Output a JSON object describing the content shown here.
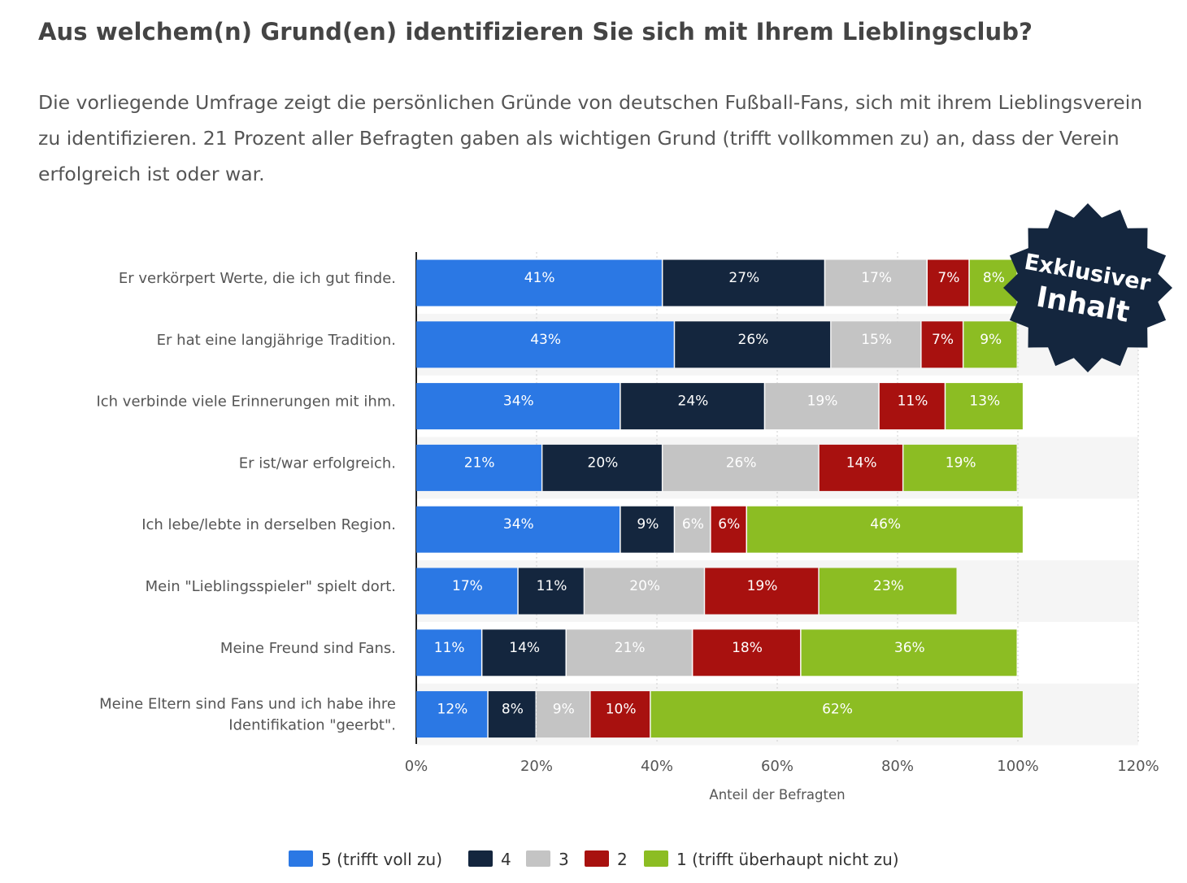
{
  "page": {
    "title": "Aus welchem(n) Grund(en) identifizieren Sie sich mit Ihrem Lieblingsclub?",
    "description": "Die vorliegende Umfrage zeigt die persönlichen Gründe von deutschen Fußball-Fans, sich mit ihrem Lieblingsverein zu identifizieren. 21 Prozent aller Befragten gaben als wichtigen Grund (trifft vollkommen zu) an, dass der Verein erfolgreich ist oder war."
  },
  "badge": {
    "line1": "Exklusiver",
    "line2": "Inhalt",
    "color": "#14263e"
  },
  "chart_data": {
    "type": "bar",
    "orientation": "horizontal",
    "stacked": true,
    "categories": [
      "Er verkörpert Werte, die ich gut finde.",
      "Er hat eine langjährige Tradition.",
      "Ich verbinde viele Erinnerungen mit ihm.",
      "Er ist/war erfolgreich.",
      "Ich lebe/lebte in derselben Region.",
      "Mein \"Lieblingsspieler\" spielt dort.",
      "Meine Freund sind Fans.",
      "Meine Eltern sind Fans und ich habe ihre Identifikation \"geerbt\"."
    ],
    "series": [
      {
        "name": "5 (trifft voll zu)",
        "color": "#2b78e4",
        "values": [
          41,
          43,
          34,
          21,
          34,
          17,
          11,
          12
        ]
      },
      {
        "name": "4",
        "color": "#14263e",
        "values": [
          27,
          26,
          24,
          20,
          9,
          11,
          14,
          8
        ]
      },
      {
        "name": "3",
        "color": "#c4c4c4",
        "values": [
          17,
          15,
          19,
          26,
          6,
          20,
          21,
          9
        ]
      },
      {
        "name": "2",
        "color": "#a8110f",
        "values": [
          7,
          7,
          11,
          14,
          6,
          19,
          18,
          10
        ]
      },
      {
        "name": "1 (trifft überhaupt nicht zu)",
        "color": "#8cbd23",
        "values": [
          8,
          9,
          13,
          19,
          46,
          23,
          36,
          62
        ]
      }
    ],
    "xlabel": "Anteil der Befragten",
    "xlim": [
      0,
      120
    ],
    "xticks": [
      "0%",
      "20%",
      "40%",
      "60%",
      "80%",
      "100%",
      "120%"
    ],
    "legend": "bottom",
    "grid": true
  }
}
